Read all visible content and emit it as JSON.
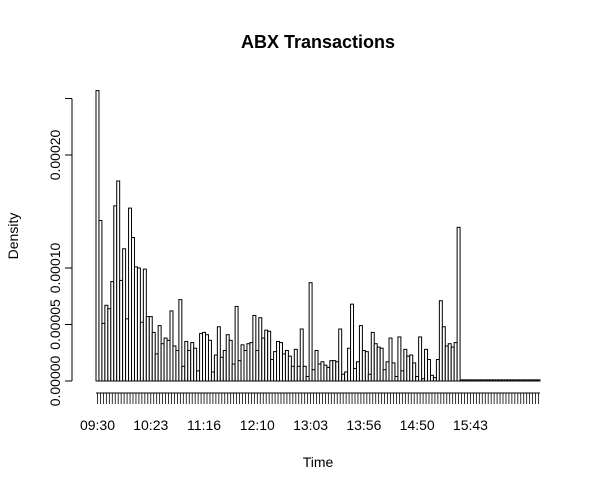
{
  "chart_data": {
    "type": "bar",
    "title": "ABX Transactions",
    "xlabel": "Time",
    "ylabel": "Density",
    "ylim": [
      0,
      0.00026
    ],
    "y_ticks": [
      "0.00000",
      "0.00005",
      "0.00010",
      "0.00020"
    ],
    "y_tick_values": [
      0,
      5e-05,
      0.0001,
      0.0002
    ],
    "extra_y_tick_unlabeled": 0.00025,
    "x_tick_labels": [
      "09:30",
      "10:23",
      "11:16",
      "12:10",
      "13:03",
      "13:56",
      "14:50",
      "15:43"
    ],
    "bin_count": 150,
    "values": [
      0.000257,
      0.000142,
      5.1e-05,
      6.7e-05,
      6.4e-05,
      8.8e-05,
      0.000155,
      0.000177,
      8.9e-05,
      0.000117,
      5.5e-05,
      0.000153,
      0.000127,
      0.000101,
      0.0001,
      5.2e-05,
      9.9e-05,
      5.7e-05,
      5.7e-05,
      4.3e-05,
      2.4e-05,
      4.9e-05,
      3.3e-05,
      3.8e-05,
      3.6e-05,
      6.2e-05,
      3.1e-05,
      2.7e-05,
      7.2e-05,
      1.3e-05,
      3.5e-05,
      2.7e-05,
      3.4e-05,
      2.9e-05,
      9e-06,
      4.2e-05,
      4.3e-05,
      4.1e-05,
      3.6e-05,
      8e-06,
      2.3e-05,
      4.8e-05,
      2.1e-05,
      2.7e-05,
      4.1e-05,
      3.6e-05,
      1.5e-05,
      6.6e-05,
      1.8e-05,
      3.2e-05,
      2.7e-05,
      3.3e-05,
      3.4e-05,
      5.8e-05,
      2.7e-05,
      5.6e-05,
      3.8e-05,
      4.5e-05,
      4.4e-05,
      1.9e-05,
      2.6e-05,
      3.5e-05,
      3.4e-05,
      2.4e-05,
      2.7e-05,
      2.2e-05,
      1.3e-05,
      2.8e-05,
      1.3e-05,
      4.6e-05,
      1.3e-05,
      4e-06,
      8.7e-05,
      1e-05,
      2.7e-05,
      1.5e-05,
      1.7e-05,
      1.4e-05,
      1.2e-05,
      1.8e-05,
      1.8e-05,
      1.7e-05,
      4.6e-05,
      6e-06,
      8e-06,
      2.9e-05,
      6.8e-05,
      1.1e-05,
      1.7e-05,
      4.9e-05,
      2.7e-05,
      2.6e-05,
      6e-06,
      4.3e-05,
      3.3e-05,
      3e-05,
      2.9e-05,
      1e-05,
      1.7e-05,
      3.8e-05,
      1.6e-05,
      4e-06,
      3.9e-05,
      9e-06,
      2.8e-05,
      2.2e-05,
      2.3e-05,
      1.6e-05,
      4e-06,
      3.9e-05,
      2e-06,
      2.8e-05,
      1.9e-05,
      5e-06,
      3e-06,
      1.9e-05,
      7.1e-05,
      4.8e-05,
      3.1e-05,
      3.3e-05,
      3e-05,
      3.4e-05,
      0.000136,
      1e-06,
      1e-06,
      1e-06,
      1e-06,
      1e-06,
      1e-06,
      1e-06,
      1e-06,
      1e-06,
      1e-06,
      1e-06,
      1e-06,
      1e-06,
      1e-06,
      1e-06,
      1e-06,
      1e-06,
      1e-06,
      1e-06,
      1e-06,
      1e-06,
      1e-06,
      1e-06,
      1e-06,
      1e-06,
      1e-06,
      1e-06
    ]
  }
}
